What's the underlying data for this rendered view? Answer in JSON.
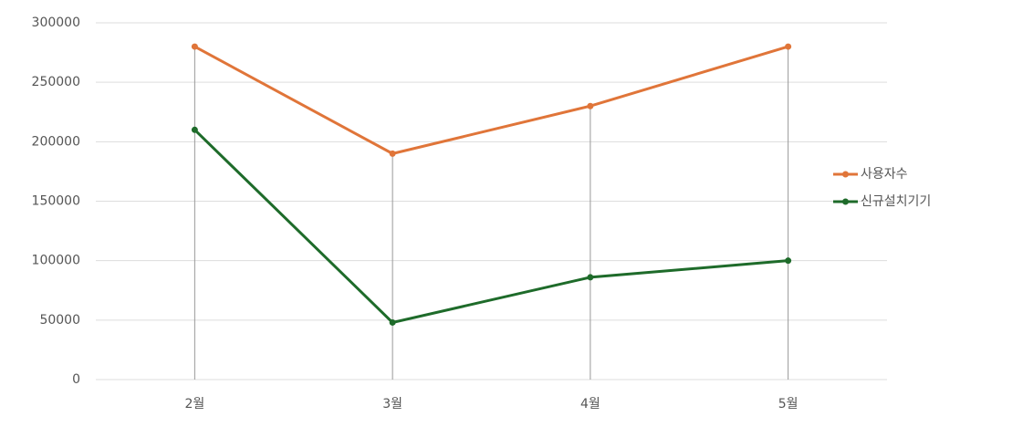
{
  "chart_data": {
    "type": "line",
    "categories": [
      "2월",
      "3월",
      "4월",
      "5월"
    ],
    "series": [
      {
        "name": "사용자수",
        "color": "#e07539",
        "values": [
          280000,
          190000,
          230000,
          280000
        ]
      },
      {
        "name": "신규설치기기",
        "color": "#1e6b2a",
        "values": [
          210000,
          48000,
          86000,
          100000
        ]
      }
    ],
    "ylim": [
      0,
      300000
    ],
    "yticks": [
      0,
      50000,
      100000,
      150000,
      200000,
      250000,
      300000
    ],
    "grid": true,
    "legend": "right"
  }
}
